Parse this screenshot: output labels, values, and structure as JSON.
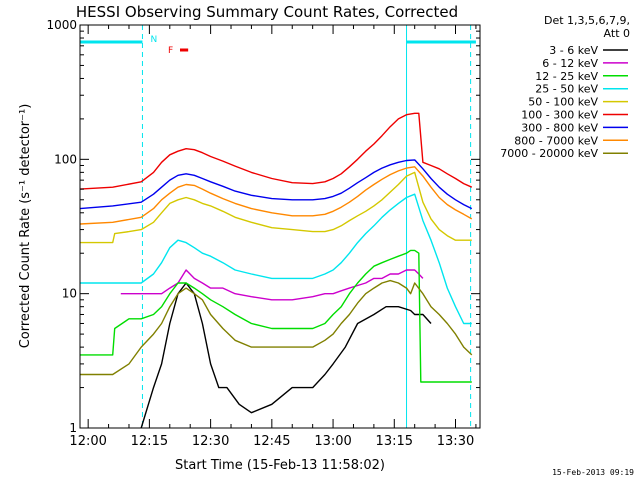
{
  "chart_data": {
    "type": "line",
    "title": "HESSI Observing Summary Count Rates, Corrected",
    "xlabel": "Start Time (15-Feb-13 11:58:02)",
    "ylabel": "Corrected Count Rate (s⁻¹ detector⁻¹)",
    "y_scale": "log",
    "ylim": [
      1,
      1000
    ],
    "xlim": [
      -2,
      96
    ],
    "y_ticks": [
      {
        "v": 1,
        "label": "1"
      },
      {
        "v": 10,
        "label": "10"
      },
      {
        "v": 100,
        "label": "100"
      },
      {
        "v": 1000,
        "label": "1000"
      }
    ],
    "x_ticks": [
      {
        "t": 0,
        "label": "12:00"
      },
      {
        "t": 15,
        "label": "12:15"
      },
      {
        "t": 30,
        "label": "12:30"
      },
      {
        "t": 45,
        "label": "12:45"
      },
      {
        "t": 60,
        "label": "13:00"
      },
      {
        "t": 75,
        "label": "13:15"
      },
      {
        "t": 90,
        "label": "13:30"
      }
    ],
    "legend_header": [
      "Det 1,3,5,6,7,9,",
      "Att 0"
    ],
    "legend_position": "right",
    "annotations": {
      "night_label": "N",
      "flare_label": "F"
    },
    "night_bars": [
      [
        -2,
        13.3
      ],
      [
        78,
        95
      ]
    ],
    "night_edges_dashed": [
      13.3,
      93.7
    ],
    "night_edge_solid": 78,
    "flare_bar": [
      22.5,
      24.5
    ],
    "series": [
      {
        "name": "3 - 6 keV",
        "color": "#000000",
        "x": [
          13,
          16,
          18,
          20,
          22,
          24,
          26,
          28,
          30,
          32,
          34,
          37,
          40,
          45,
          50,
          55,
          58,
          60,
          63,
          66,
          70,
          73,
          76,
          79,
          80,
          82,
          84
        ],
        "y": [
          1,
          2,
          3,
          6,
          10,
          12,
          10,
          6,
          3,
          2,
          2,
          1.5,
          1.3,
          1.5,
          2,
          2,
          2.5,
          3,
          4,
          6,
          7,
          8,
          8,
          7.5,
          7,
          7,
          6
        ]
      },
      {
        "name": "6 - 12 keV",
        "color": "#cc00cc",
        "x": [
          8,
          10,
          12,
          14,
          16,
          18,
          20,
          22,
          24,
          26,
          28,
          30,
          33,
          36,
          40,
          45,
          50,
          55,
          58,
          60,
          62,
          64,
          66,
          68,
          70,
          72,
          74,
          76,
          78,
          80,
          81,
          82
        ],
        "y": [
          10,
          10,
          10,
          10,
          10,
          10,
          11,
          12,
          15,
          13,
          12,
          11,
          11,
          10,
          9.5,
          9,
          9,
          9.5,
          10,
          10,
          10.5,
          11,
          11.5,
          12,
          13,
          13,
          14,
          14,
          15,
          15,
          14,
          13
        ]
      },
      {
        "name": "12 - 25 keV",
        "color": "#00dd00",
        "x": [
          -2,
          6,
          6.5,
          10,
          13,
          16,
          18,
          20,
          22,
          24,
          26,
          28,
          30,
          33,
          36,
          40,
          45,
          50,
          55,
          58,
          60,
          62,
          64,
          66,
          68,
          70,
          72,
          74,
          76,
          78,
          79,
          80,
          81,
          81.5,
          84,
          88,
          92,
          94
        ],
        "y": [
          3.5,
          3.5,
          5.5,
          6.5,
          6.5,
          7,
          8,
          10,
          12,
          12,
          11,
          10,
          9,
          8,
          7,
          6,
          5.5,
          5.5,
          5.5,
          6,
          7,
          8,
          10,
          12,
          14,
          16,
          17,
          18,
          19,
          20,
          21,
          21,
          20,
          2.2,
          2.2,
          2.2,
          2.2,
          2.2
        ]
      },
      {
        "name": "25 - 50 keV",
        "color": "#00e5ee",
        "x": [
          -2,
          6,
          13,
          16,
          18,
          20,
          22,
          24,
          26,
          28,
          30,
          33,
          36,
          40,
          45,
          50,
          55,
          58,
          60,
          62,
          64,
          66,
          68,
          70,
          72,
          74,
          76,
          78,
          80,
          82,
          84,
          86,
          88,
          90,
          92,
          94
        ],
        "y": [
          12,
          12,
          12,
          14,
          17,
          22,
          25,
          24,
          22,
          20,
          19,
          17,
          15,
          14,
          13,
          13,
          13,
          14,
          15,
          17,
          20,
          24,
          28,
          32,
          37,
          42,
          47,
          52,
          55,
          35,
          25,
          17,
          11,
          8,
          6,
          6
        ]
      },
      {
        "name": "50 - 100 keV",
        "color": "#d4c800",
        "x": [
          -2,
          6,
          6.5,
          10,
          13,
          16,
          18,
          20,
          22,
          24,
          26,
          28,
          30,
          33,
          36,
          40,
          45,
          50,
          55,
          58,
          60,
          62,
          64,
          66,
          68,
          70,
          72,
          74,
          76,
          78,
          80,
          82,
          84,
          86,
          88,
          90,
          92,
          94
        ],
        "y": [
          24,
          24,
          28,
          29,
          30,
          34,
          40,
          47,
          50,
          52,
          50,
          47,
          45,
          41,
          37,
          34,
          31,
          30,
          29,
          29,
          30,
          32,
          35,
          38,
          41,
          45,
          50,
          57,
          65,
          75,
          80,
          48,
          36,
          30,
          27,
          25,
          25,
          25
        ]
      },
      {
        "name": "100 - 300 keV",
        "color": "#ee0000",
        "x": [
          -2,
          6,
          13,
          16,
          18,
          20,
          22,
          24,
          26,
          28,
          30,
          33,
          36,
          40,
          45,
          50,
          55,
          58,
          60,
          62,
          64,
          66,
          68,
          70,
          72,
          74,
          76,
          78,
          80,
          81,
          82,
          84,
          86,
          88,
          90,
          92,
          94
        ],
        "y": [
          60,
          62,
          68,
          80,
          95,
          108,
          115,
          120,
          118,
          112,
          105,
          97,
          89,
          80,
          72,
          67,
          66,
          68,
          72,
          78,
          88,
          100,
          115,
          130,
          150,
          175,
          200,
          215,
          220,
          220,
          95,
          90,
          85,
          78,
          72,
          66,
          62
        ]
      },
      {
        "name": "300 - 800 keV",
        "color": "#0000ee",
        "x": [
          -2,
          6,
          13,
          16,
          18,
          20,
          22,
          24,
          26,
          28,
          30,
          33,
          36,
          40,
          45,
          50,
          55,
          58,
          60,
          62,
          64,
          66,
          68,
          70,
          72,
          74,
          76,
          78,
          80,
          82,
          84,
          86,
          88,
          90,
          92,
          94
        ],
        "y": [
          43,
          45,
          48,
          55,
          62,
          70,
          76,
          78,
          76,
          72,
          68,
          63,
          58,
          54,
          51,
          50,
          50,
          51,
          53,
          56,
          61,
          67,
          73,
          80,
          86,
          91,
          95,
          98,
          99,
          85,
          72,
          62,
          55,
          50,
          46,
          43
        ]
      },
      {
        "name": "800 - 7000 keV",
        "color": "#ff8800",
        "x": [
          -2,
          6,
          13,
          16,
          18,
          20,
          22,
          24,
          26,
          28,
          30,
          33,
          36,
          40,
          45,
          50,
          55,
          58,
          60,
          62,
          64,
          66,
          68,
          70,
          72,
          74,
          76,
          78,
          80,
          82,
          84,
          86,
          88,
          90,
          92,
          94
        ],
        "y": [
          33,
          34,
          37,
          43,
          50,
          56,
          62,
          65,
          64,
          60,
          56,
          51,
          47,
          43,
          40,
          38,
          38,
          39,
          41,
          44,
          48,
          53,
          59,
          65,
          71,
          77,
          82,
          86,
          88,
          75,
          62,
          52,
          46,
          42,
          39,
          36
        ]
      },
      {
        "name": "7000 - 20000 keV",
        "color": "#808000",
        "x": [
          -2,
          6,
          10,
          13,
          16,
          18,
          20,
          22,
          24,
          26,
          28,
          30,
          33,
          36,
          40,
          45,
          50,
          55,
          58,
          60,
          62,
          64,
          66,
          68,
          70,
          72,
          74,
          76,
          78,
          79,
          80,
          82,
          84,
          86,
          88,
          90,
          92,
          94
        ],
        "y": [
          2.5,
          2.5,
          3,
          4,
          5,
          6,
          8,
          10,
          11,
          10,
          9,
          7,
          5.5,
          4.5,
          4,
          4,
          4,
          4,
          4.5,
          5,
          6,
          7,
          8.5,
          10,
          11,
          12,
          12.5,
          12,
          11,
          10,
          12,
          10,
          8,
          7,
          6,
          5,
          4,
          3.5
        ]
      }
    ]
  },
  "footer": {
    "timestamp": "15-Feb-2013 09:19"
  }
}
